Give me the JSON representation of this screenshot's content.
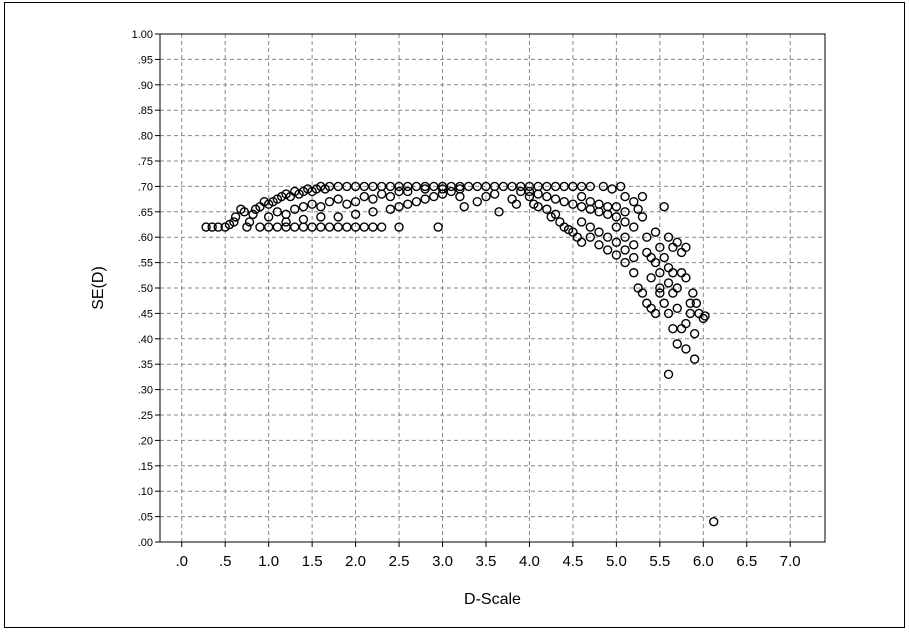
{
  "chart_data": {
    "type": "scatter",
    "xlabel": "D-Scale",
    "ylabel": "SE(D)",
    "xlim": [
      -0.25,
      7.4
    ],
    "ylim": [
      0.0,
      1.0
    ],
    "xticks": [
      ".0",
      ".5",
      "1.0",
      "1.5",
      "2.0",
      "2.5",
      "3.0",
      "3.5",
      "4.0",
      "4.5",
      "5.0",
      "5.5",
      "6.0",
      "6.5",
      "7.0"
    ],
    "yticks": [
      ".00",
      ".05",
      ".10",
      ".15",
      ".20",
      ".25",
      ".30",
      ".35",
      ".40",
      ".45",
      ".50",
      ".55",
      ".60",
      ".65",
      ".70",
      ".75",
      ".80",
      ".85",
      ".90",
      ".95",
      "1.00"
    ],
    "grid": true,
    "marker": "open-circle",
    "marker_color": "#000000",
    "points": [
      [
        0.28,
        0.62
      ],
      [
        0.35,
        0.62
      ],
      [
        0.42,
        0.62
      ],
      [
        0.5,
        0.62
      ],
      [
        0.55,
        0.625
      ],
      [
        0.6,
        0.63
      ],
      [
        0.62,
        0.64
      ],
      [
        0.68,
        0.655
      ],
      [
        0.72,
        0.65
      ],
      [
        0.75,
        0.62
      ],
      [
        0.78,
        0.63
      ],
      [
        0.82,
        0.645
      ],
      [
        0.85,
        0.655
      ],
      [
        0.9,
        0.66
      ],
      [
        0.95,
        0.67
      ],
      [
        1.0,
        0.665
      ],
      [
        1.05,
        0.67
      ],
      [
        1.1,
        0.675
      ],
      [
        1.15,
        0.68
      ],
      [
        1.2,
        0.685
      ],
      [
        1.25,
        0.68
      ],
      [
        1.3,
        0.69
      ],
      [
        1.35,
        0.685
      ],
      [
        1.4,
        0.69
      ],
      [
        1.45,
        0.695
      ],
      [
        1.5,
        0.69
      ],
      [
        1.55,
        0.695
      ],
      [
        1.6,
        0.7
      ],
      [
        1.65,
        0.695
      ],
      [
        1.7,
        0.7
      ],
      [
        1.8,
        0.7
      ],
      [
        1.9,
        0.7
      ],
      [
        2.0,
        0.7
      ],
      [
        0.9,
        0.62
      ],
      [
        1.0,
        0.62
      ],
      [
        1.1,
        0.62
      ],
      [
        1.2,
        0.62
      ],
      [
        1.3,
        0.62
      ],
      [
        1.4,
        0.62
      ],
      [
        1.5,
        0.62
      ],
      [
        1.6,
        0.62
      ],
      [
        1.7,
        0.62
      ],
      [
        1.8,
        0.62
      ],
      [
        1.9,
        0.62
      ],
      [
        2.0,
        0.62
      ],
      [
        2.1,
        0.62
      ],
      [
        2.2,
        0.62
      ],
      [
        2.3,
        0.62
      ],
      [
        2.5,
        0.62
      ],
      [
        2.95,
        0.62
      ],
      [
        1.0,
        0.64
      ],
      [
        1.1,
        0.65
      ],
      [
        1.2,
        0.645
      ],
      [
        1.3,
        0.655
      ],
      [
        1.4,
        0.66
      ],
      [
        1.5,
        0.665
      ],
      [
        1.6,
        0.66
      ],
      [
        1.7,
        0.67
      ],
      [
        1.8,
        0.675
      ],
      [
        1.9,
        0.665
      ],
      [
        2.0,
        0.67
      ],
      [
        2.1,
        0.68
      ],
      [
        2.2,
        0.675
      ],
      [
        2.3,
        0.685
      ],
      [
        2.4,
        0.68
      ],
      [
        2.5,
        0.69
      ],
      [
        1.2,
        0.63
      ],
      [
        1.4,
        0.635
      ],
      [
        1.6,
        0.64
      ],
      [
        1.8,
        0.64
      ],
      [
        2.0,
        0.645
      ],
      [
        2.2,
        0.65
      ],
      [
        2.4,
        0.655
      ],
      [
        2.5,
        0.66
      ],
      [
        2.6,
        0.665
      ],
      [
        2.7,
        0.67
      ],
      [
        2.8,
        0.675
      ],
      [
        2.9,
        0.68
      ],
      [
        3.0,
        0.685
      ],
      [
        3.1,
        0.69
      ],
      [
        3.2,
        0.695
      ],
      [
        2.1,
        0.7
      ],
      [
        2.2,
        0.7
      ],
      [
        2.3,
        0.7
      ],
      [
        2.4,
        0.7
      ],
      [
        2.5,
        0.7
      ],
      [
        2.6,
        0.7
      ],
      [
        2.7,
        0.7
      ],
      [
        2.8,
        0.7
      ],
      [
        2.9,
        0.7
      ],
      [
        3.0,
        0.7
      ],
      [
        3.1,
        0.7
      ],
      [
        3.2,
        0.7
      ],
      [
        3.3,
        0.7
      ],
      [
        3.4,
        0.7
      ],
      [
        3.5,
        0.7
      ],
      [
        3.6,
        0.7
      ],
      [
        3.7,
        0.7
      ],
      [
        3.8,
        0.7
      ],
      [
        3.9,
        0.7
      ],
      [
        4.0,
        0.7
      ],
      [
        4.1,
        0.7
      ],
      [
        4.2,
        0.7
      ],
      [
        4.3,
        0.7
      ],
      [
        4.4,
        0.7
      ],
      [
        4.5,
        0.7
      ],
      [
        4.6,
        0.7
      ],
      [
        4.7,
        0.7
      ],
      [
        2.6,
        0.69
      ],
      [
        2.8,
        0.695
      ],
      [
        3.0,
        0.695
      ],
      [
        3.2,
        0.68
      ],
      [
        3.25,
        0.66
      ],
      [
        3.4,
        0.67
      ],
      [
        3.5,
        0.68
      ],
      [
        3.6,
        0.685
      ],
      [
        3.65,
        0.65
      ],
      [
        3.8,
        0.675
      ],
      [
        3.85,
        0.665
      ],
      [
        3.9,
        0.69
      ],
      [
        4.0,
        0.68
      ],
      [
        4.05,
        0.665
      ],
      [
        4.1,
        0.66
      ],
      [
        4.2,
        0.655
      ],
      [
        4.25,
        0.64
      ],
      [
        4.3,
        0.645
      ],
      [
        4.35,
        0.63
      ],
      [
        4.4,
        0.62
      ],
      [
        4.45,
        0.615
      ],
      [
        4.5,
        0.61
      ],
      [
        4.55,
        0.6
      ],
      [
        4.6,
        0.59
      ],
      [
        4.0,
        0.69
      ],
      [
        4.1,
        0.685
      ],
      [
        4.2,
        0.68
      ],
      [
        4.3,
        0.675
      ],
      [
        4.4,
        0.67
      ],
      [
        4.5,
        0.665
      ],
      [
        4.6,
        0.66
      ],
      [
        4.7,
        0.655
      ],
      [
        4.8,
        0.65
      ],
      [
        4.9,
        0.645
      ],
      [
        5.0,
        0.64
      ],
      [
        4.6,
        0.68
      ],
      [
        4.7,
        0.67
      ],
      [
        4.8,
        0.665
      ],
      [
        4.9,
        0.66
      ],
      [
        5.0,
        0.66
      ],
      [
        5.1,
        0.65
      ],
      [
        4.6,
        0.63
      ],
      [
        4.7,
        0.62
      ],
      [
        4.7,
        0.6
      ],
      [
        4.8,
        0.61
      ],
      [
        4.8,
        0.585
      ],
      [
        4.9,
        0.6
      ],
      [
        4.9,
        0.575
      ],
      [
        5.0,
        0.62
      ],
      [
        5.0,
        0.59
      ],
      [
        5.0,
        0.565
      ],
      [
        5.1,
        0.63
      ],
      [
        5.1,
        0.6
      ],
      [
        5.1,
        0.575
      ],
      [
        5.1,
        0.55
      ],
      [
        5.2,
        0.62
      ],
      [
        5.2,
        0.585
      ],
      [
        5.2,
        0.56
      ],
      [
        5.2,
        0.53
      ],
      [
        5.25,
        0.5
      ],
      [
        4.85,
        0.7
      ],
      [
        4.95,
        0.695
      ],
      [
        5.05,
        0.7
      ],
      [
        5.1,
        0.68
      ],
      [
        5.2,
        0.67
      ],
      [
        5.25,
        0.655
      ],
      [
        5.3,
        0.68
      ],
      [
        5.3,
        0.64
      ],
      [
        5.35,
        0.6
      ],
      [
        5.35,
        0.57
      ],
      [
        5.4,
        0.56
      ],
      [
        5.4,
        0.52
      ],
      [
        5.45,
        0.61
      ],
      [
        5.45,
        0.55
      ],
      [
        5.5,
        0.58
      ],
      [
        5.5,
        0.53
      ],
      [
        5.5,
        0.5
      ],
      [
        5.55,
        0.66
      ],
      [
        5.55,
        0.56
      ],
      [
        5.6,
        0.6
      ],
      [
        5.6,
        0.54
      ],
      [
        5.6,
        0.51
      ],
      [
        5.65,
        0.58
      ],
      [
        5.65,
        0.53
      ],
      [
        5.7,
        0.59
      ],
      [
        5.7,
        0.5
      ],
      [
        5.75,
        0.57
      ],
      [
        5.75,
        0.53
      ],
      [
        5.8,
        0.58
      ],
      [
        5.8,
        0.52
      ],
      [
        5.3,
        0.49
      ],
      [
        5.35,
        0.47
      ],
      [
        5.4,
        0.46
      ],
      [
        5.45,
        0.45
      ],
      [
        5.5,
        0.49
      ],
      [
        5.55,
        0.47
      ],
      [
        5.6,
        0.45
      ],
      [
        5.65,
        0.49
      ],
      [
        5.7,
        0.46
      ],
      [
        5.75,
        0.42
      ],
      [
        5.65,
        0.42
      ],
      [
        5.7,
        0.39
      ],
      [
        5.8,
        0.43
      ],
      [
        5.8,
        0.38
      ],
      [
        5.85,
        0.47
      ],
      [
        5.85,
        0.45
      ],
      [
        5.88,
        0.49
      ],
      [
        5.9,
        0.41
      ],
      [
        5.9,
        0.36
      ],
      [
        5.92,
        0.47
      ],
      [
        5.95,
        0.45
      ],
      [
        6.0,
        0.44
      ],
      [
        6.02,
        0.445
      ],
      [
        5.6,
        0.33
      ],
      [
        6.12,
        0.04
      ]
    ]
  }
}
